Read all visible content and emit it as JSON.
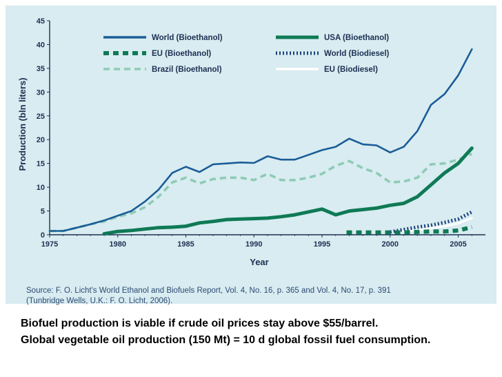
{
  "chart_data": {
    "type": "line",
    "title": "",
    "xlabel": "Year",
    "ylabel": "Production (bln liters)",
    "xlim": [
      1975,
      2007
    ],
    "ylim": [
      0,
      45
    ],
    "x_ticks": [
      1975,
      1980,
      1985,
      1990,
      1995,
      2000,
      2005
    ],
    "y_ticks": [
      0,
      5,
      10,
      15,
      20,
      25,
      30,
      35,
      40,
      45
    ],
    "grid": false,
    "legend": "top, two columns",
    "series": [
      {
        "name": "World (Bioethanol)",
        "color": "#1a5c97",
        "style": "solid",
        "x": [
          1975,
          1976,
          1977,
          1978,
          1979,
          1980,
          1981,
          1982,
          1983,
          1984,
          1985,
          1986,
          1987,
          1988,
          1989,
          1990,
          1991,
          1992,
          1993,
          1994,
          1995,
          1996,
          1997,
          1998,
          1999,
          2000,
          2001,
          2002,
          2003,
          2004,
          2005,
          2006
        ],
        "values": [
          0.8,
          0.8,
          1.5,
          2.2,
          3.0,
          4.0,
          5.0,
          7.0,
          9.5,
          13.0,
          14.3,
          13.2,
          14.8,
          15.0,
          15.2,
          15.1,
          16.5,
          15.8,
          15.8,
          16.8,
          17.8,
          18.5,
          20.2,
          19.0,
          18.8,
          17.3,
          18.5,
          21.8,
          27.3,
          29.6,
          33.5,
          39.0
        ]
      },
      {
        "name": "EU (Bioethanol)",
        "color": "#0f7a55",
        "style": "dash-thick",
        "x": [
          1996.8,
          1998,
          1999,
          2000,
          2001,
          2002,
          2003,
          2004,
          2005,
          2006
        ],
        "values": [
          0.5,
          0.5,
          0.5,
          0.5,
          0.5,
          0.6,
          0.7,
          0.7,
          0.9,
          1.6
        ]
      },
      {
        "name": "Brazil (Bioethanol)",
        "color": "#8fcbb5",
        "style": "dash",
        "x": [
          1975,
          1976,
          1977,
          1978,
          1979,
          1980,
          1981,
          1982,
          1983,
          1984,
          1985,
          1986,
          1987,
          1988,
          1989,
          1990,
          1991,
          1992,
          1993,
          1994,
          1995,
          1996,
          1997,
          1998,
          1999,
          2000,
          2001,
          2002,
          2003,
          2004,
          2005,
          2006
        ],
        "values": [
          0.8,
          0.8,
          1.5,
          2.2,
          2.8,
          3.8,
          4.5,
          5.8,
          8.0,
          11.0,
          12.0,
          10.8,
          11.7,
          12.0,
          12.0,
          11.5,
          12.8,
          11.5,
          11.5,
          12.0,
          12.8,
          14.5,
          15.5,
          14.0,
          13.0,
          11.0,
          11.2,
          12.0,
          14.8,
          15.0,
          15.8,
          17.0
        ]
      },
      {
        "name": "USA (Bioethanol)",
        "color": "#0f7a55",
        "style": "solid-thick",
        "x": [
          1979,
          1980,
          1981,
          1982,
          1983,
          1984,
          1985,
          1986,
          1987,
          1988,
          1989,
          1990,
          1991,
          1992,
          1993,
          1994,
          1995,
          1996,
          1997,
          1998,
          1999,
          2000,
          2001,
          2002,
          2003,
          2004,
          2005,
          2006
        ],
        "values": [
          0.2,
          0.7,
          0.9,
          1.2,
          1.5,
          1.6,
          1.8,
          2.5,
          2.8,
          3.2,
          3.3,
          3.4,
          3.5,
          3.8,
          4.2,
          4.8,
          5.4,
          4.2,
          5.0,
          5.3,
          5.6,
          6.2,
          6.6,
          8.0,
          10.5,
          13.0,
          15.0,
          18.2
        ]
      },
      {
        "name": "World (Biodiesel)",
        "color": "#1a3f7a",
        "style": "dotted",
        "x": [
          2000,
          2001,
          2002,
          2003,
          2004,
          2005,
          2006
        ],
        "values": [
          0.6,
          1.1,
          1.6,
          2.0,
          2.6,
          3.3,
          4.8
        ]
      },
      {
        "name": "EU (Biodiesel)",
        "color": "#ffffff",
        "style": "solid-white",
        "x": [
          2000,
          2001,
          2002,
          2003,
          2004,
          2005,
          2006
        ],
        "values": [
          0.5,
          0.8,
          1.0,
          1.4,
          1.8,
          2.4,
          3.5
        ]
      }
    ]
  },
  "source": {
    "line1": "Source: F. O. Licht's World Ethanol and Biofuels Report, Vol. 4, No. 16, p. 365 and Vol. 4, No. 17, p. 391",
    "line2": "(Tunbridge Wells, U.K.: F. O. Licht, 2006)."
  },
  "caption": {
    "line1": "Biofuel production is viable if crude oil prices stay above $55/barrel.",
    "line2": "Global vegetable oil production (150 Mt) = 10 d global fossil fuel consumption."
  }
}
